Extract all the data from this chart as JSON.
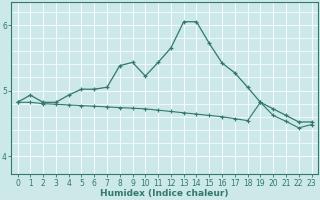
{
  "xlabel": "Humidex (Indice chaleur)",
  "x_ticks": [
    0,
    1,
    2,
    3,
    4,
    5,
    6,
    7,
    8,
    9,
    10,
    11,
    12,
    13,
    14,
    15,
    16,
    17,
    18,
    19,
    20,
    21,
    22,
    23
  ],
  "ylim": [
    3.72,
    6.35
  ],
  "xlim": [
    -0.5,
    23.5
  ],
  "yticks": [
    4,
    5,
    6
  ],
  "bg_color": "#cce8e8",
  "line_color": "#2e7b6b",
  "grid_color": "#ffffff",
  "line1_x": [
    0,
    1,
    2,
    3,
    4,
    5,
    6,
    7,
    8,
    9,
    10,
    11,
    12,
    13,
    14,
    15,
    16,
    17,
    18,
    19,
    20,
    21,
    22,
    23
  ],
  "line1_y": [
    4.82,
    4.93,
    4.82,
    4.82,
    4.93,
    5.02,
    5.02,
    5.05,
    5.38,
    5.43,
    5.22,
    5.43,
    5.65,
    6.05,
    6.05,
    5.72,
    5.42,
    5.27,
    5.05,
    4.82,
    4.72,
    4.62,
    4.52,
    4.52
  ],
  "line2_x": [
    0,
    1,
    2,
    3,
    4,
    5,
    6,
    7,
    8,
    9,
    10,
    11,
    12,
    13,
    14,
    15,
    16,
    17,
    18,
    19,
    20,
    21,
    22,
    23
  ],
  "line2_y": [
    4.82,
    4.82,
    4.8,
    4.79,
    4.78,
    4.77,
    4.76,
    4.75,
    4.74,
    4.73,
    4.72,
    4.7,
    4.68,
    4.66,
    4.64,
    4.62,
    4.6,
    4.57,
    4.54,
    4.82,
    4.62,
    4.53,
    4.43,
    4.48
  ]
}
